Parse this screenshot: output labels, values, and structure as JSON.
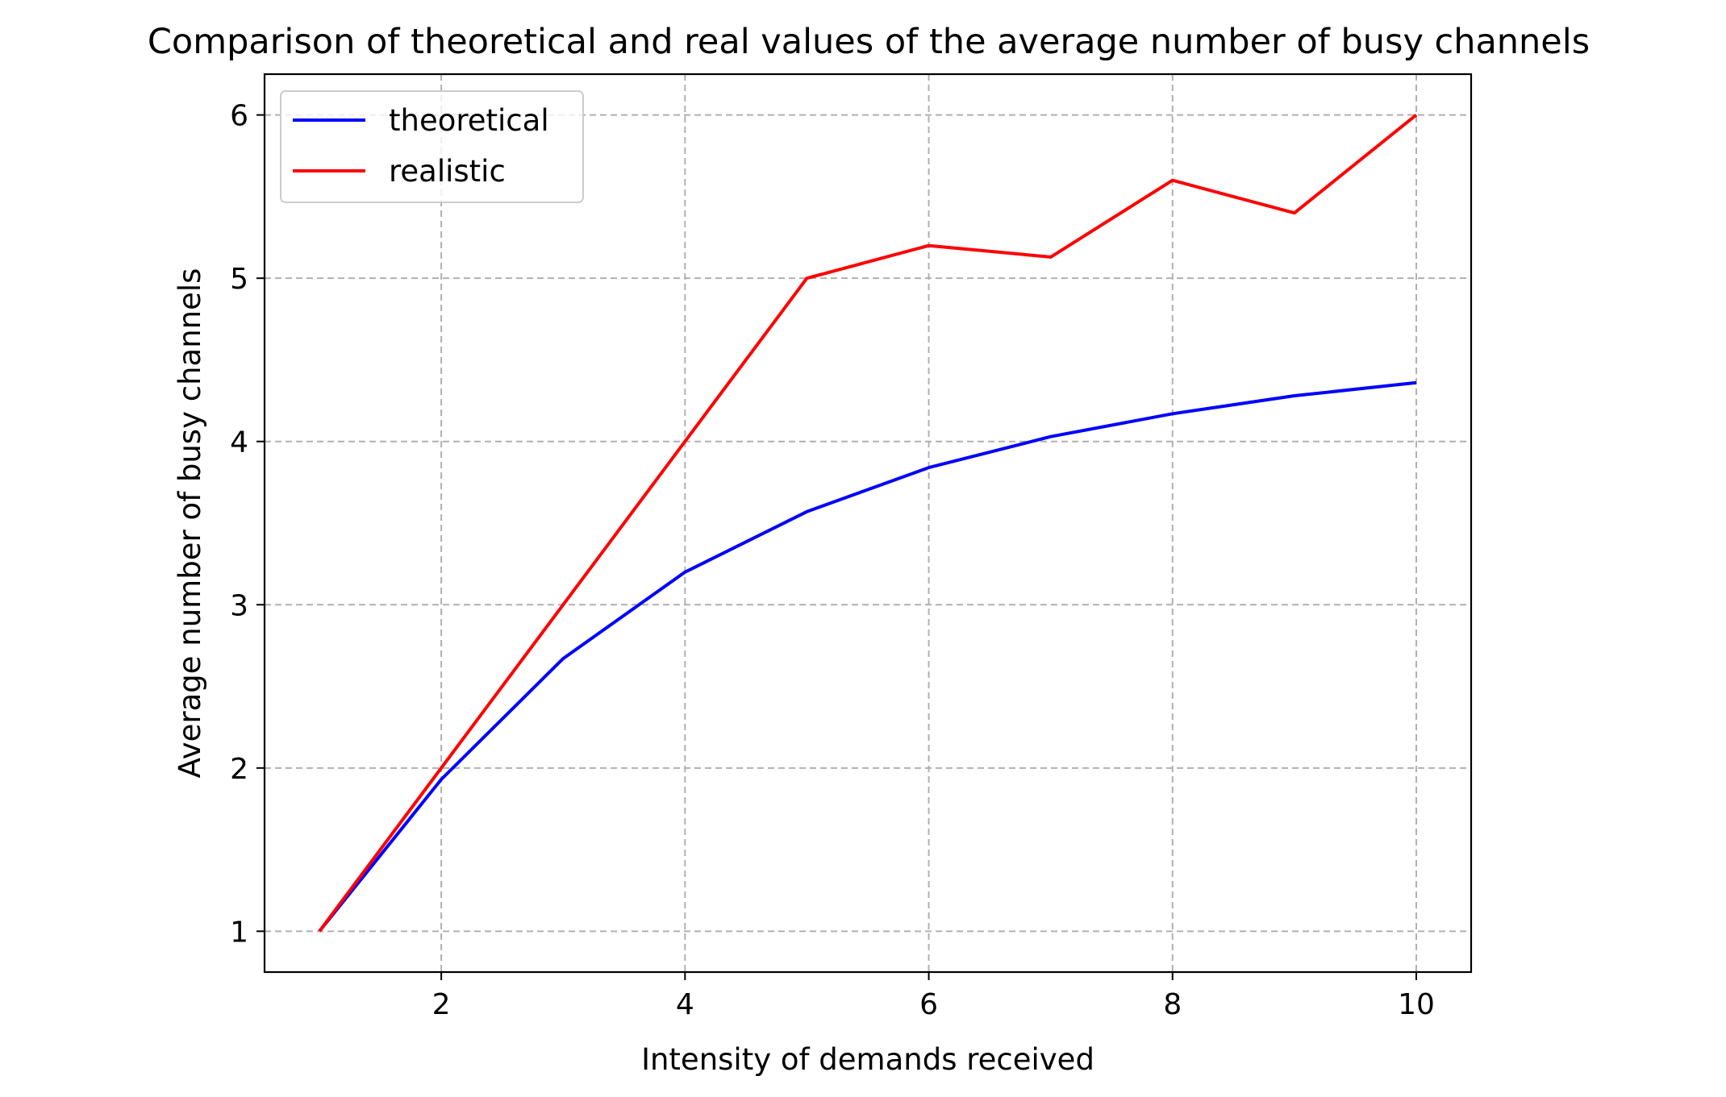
{
  "chart_data": {
    "type": "line",
    "title": "Comparison of theoretical and real values of the average number of busy channels",
    "xlabel": "Intensity of demands received",
    "ylabel": "Average number of busy channels",
    "xlim": [
      0.55,
      10.45
    ],
    "ylim": [
      0.75,
      6.25
    ],
    "xticks": [
      2,
      4,
      6,
      8,
      10
    ],
    "yticks": [
      1,
      2,
      3,
      4,
      5,
      6
    ],
    "grid": true,
    "legend_position": "top-left",
    "x": [
      1,
      2,
      3,
      4,
      5,
      6,
      7,
      8,
      9,
      10
    ],
    "series": [
      {
        "name": "theoretical",
        "color": "#0000ff",
        "values": [
          1.0,
          1.93,
          2.67,
          3.2,
          3.57,
          3.84,
          4.03,
          4.17,
          4.28,
          4.36
        ]
      },
      {
        "name": "realistic",
        "color": "#ff0000",
        "values": [
          1.0,
          2.0,
          3.0,
          4.0,
          5.0,
          5.2,
          5.13,
          5.6,
          5.4,
          6.0
        ]
      }
    ]
  }
}
